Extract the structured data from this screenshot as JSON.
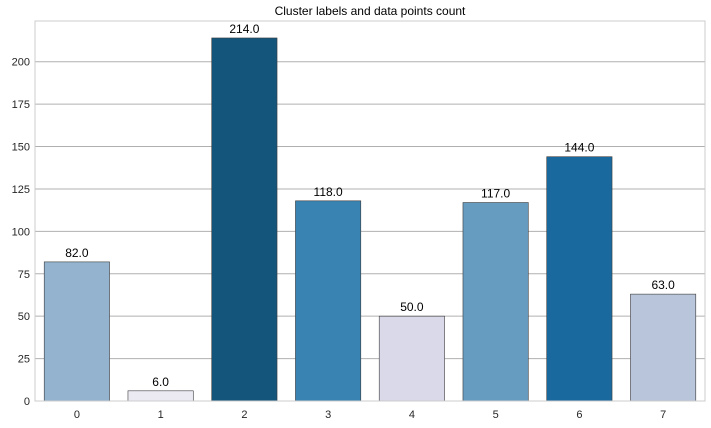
{
  "chart_data": {
    "type": "bar",
    "title": "Cluster labels and data points count",
    "xlabel": "",
    "ylabel": "",
    "categories": [
      "0",
      "1",
      "2",
      "3",
      "4",
      "5",
      "6",
      "7"
    ],
    "values": [
      82,
      6,
      214,
      118,
      50,
      117,
      144,
      63
    ],
    "data_labels": [
      "82.0",
      "6.0",
      "214.0",
      "118.0",
      "50.0",
      "117.0",
      "144.0",
      "63.0"
    ],
    "colors": [
      "#93b3cf",
      "#ebeaf3",
      "#13557b",
      "#3883b2",
      "#dad9e9",
      "#669cc0",
      "#19699e",
      "#b8c5da"
    ],
    "edge_color": "#3c3c3c",
    "ylim": [
      0,
      224
    ],
    "yticks": [
      0,
      25,
      50,
      75,
      100,
      125,
      150,
      175,
      200
    ],
    "grid": "y",
    "legend": "none"
  }
}
